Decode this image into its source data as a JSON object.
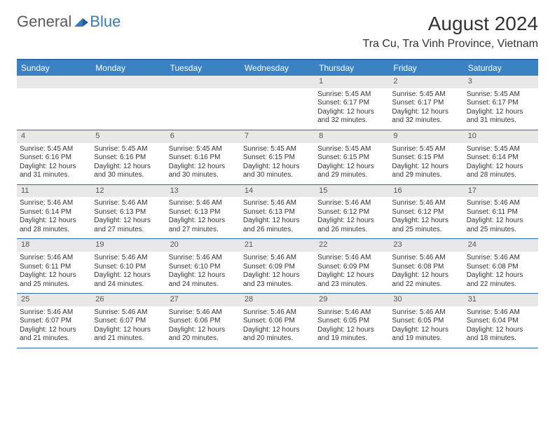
{
  "logo": {
    "general": "General",
    "blue": "Blue"
  },
  "title": "August 2024",
  "location": "Tra Cu, Tra Vinh Province, Vietnam",
  "colors": {
    "header_bg": "#3a82c4",
    "border": "#2f6aa8",
    "daynum_bg": "#e8e8e8",
    "text": "#333333",
    "logo_gray": "#5a5a5a",
    "logo_blue": "#3a7ab8"
  },
  "weekdays": [
    "Sunday",
    "Monday",
    "Tuesday",
    "Wednesday",
    "Thursday",
    "Friday",
    "Saturday"
  ],
  "first_day_index": 4,
  "days_in_month": 31,
  "days": {
    "1": {
      "sunrise": "5:45 AM",
      "sunset": "6:17 PM",
      "daylight": "12 hours and 32 minutes."
    },
    "2": {
      "sunrise": "5:45 AM",
      "sunset": "6:17 PM",
      "daylight": "12 hours and 32 minutes."
    },
    "3": {
      "sunrise": "5:45 AM",
      "sunset": "6:17 PM",
      "daylight": "12 hours and 31 minutes."
    },
    "4": {
      "sunrise": "5:45 AM",
      "sunset": "6:16 PM",
      "daylight": "12 hours and 31 minutes."
    },
    "5": {
      "sunrise": "5:45 AM",
      "sunset": "6:16 PM",
      "daylight": "12 hours and 30 minutes."
    },
    "6": {
      "sunrise": "5:45 AM",
      "sunset": "6:16 PM",
      "daylight": "12 hours and 30 minutes."
    },
    "7": {
      "sunrise": "5:45 AM",
      "sunset": "6:15 PM",
      "daylight": "12 hours and 30 minutes."
    },
    "8": {
      "sunrise": "5:45 AM",
      "sunset": "6:15 PM",
      "daylight": "12 hours and 29 minutes."
    },
    "9": {
      "sunrise": "5:45 AM",
      "sunset": "6:15 PM",
      "daylight": "12 hours and 29 minutes."
    },
    "10": {
      "sunrise": "5:45 AM",
      "sunset": "6:14 PM",
      "daylight": "12 hours and 28 minutes."
    },
    "11": {
      "sunrise": "5:46 AM",
      "sunset": "6:14 PM",
      "daylight": "12 hours and 28 minutes."
    },
    "12": {
      "sunrise": "5:46 AM",
      "sunset": "6:13 PM",
      "daylight": "12 hours and 27 minutes."
    },
    "13": {
      "sunrise": "5:46 AM",
      "sunset": "6:13 PM",
      "daylight": "12 hours and 27 minutes."
    },
    "14": {
      "sunrise": "5:46 AM",
      "sunset": "6:13 PM",
      "daylight": "12 hours and 26 minutes."
    },
    "15": {
      "sunrise": "5:46 AM",
      "sunset": "6:12 PM",
      "daylight": "12 hours and 26 minutes."
    },
    "16": {
      "sunrise": "5:46 AM",
      "sunset": "6:12 PM",
      "daylight": "12 hours and 25 minutes."
    },
    "17": {
      "sunrise": "5:46 AM",
      "sunset": "6:11 PM",
      "daylight": "12 hours and 25 minutes."
    },
    "18": {
      "sunrise": "5:46 AM",
      "sunset": "6:11 PM",
      "daylight": "12 hours and 25 minutes."
    },
    "19": {
      "sunrise": "5:46 AM",
      "sunset": "6:10 PM",
      "daylight": "12 hours and 24 minutes."
    },
    "20": {
      "sunrise": "5:46 AM",
      "sunset": "6:10 PM",
      "daylight": "12 hours and 24 minutes."
    },
    "21": {
      "sunrise": "5:46 AM",
      "sunset": "6:09 PM",
      "daylight": "12 hours and 23 minutes."
    },
    "22": {
      "sunrise": "5:46 AM",
      "sunset": "6:09 PM",
      "daylight": "12 hours and 23 minutes."
    },
    "23": {
      "sunrise": "5:46 AM",
      "sunset": "6:08 PM",
      "daylight": "12 hours and 22 minutes."
    },
    "24": {
      "sunrise": "5:46 AM",
      "sunset": "6:08 PM",
      "daylight": "12 hours and 22 minutes."
    },
    "25": {
      "sunrise": "5:46 AM",
      "sunset": "6:07 PM",
      "daylight": "12 hours and 21 minutes."
    },
    "26": {
      "sunrise": "5:46 AM",
      "sunset": "6:07 PM",
      "daylight": "12 hours and 21 minutes."
    },
    "27": {
      "sunrise": "5:46 AM",
      "sunset": "6:06 PM",
      "daylight": "12 hours and 20 minutes."
    },
    "28": {
      "sunrise": "5:46 AM",
      "sunset": "6:06 PM",
      "daylight": "12 hours and 20 minutes."
    },
    "29": {
      "sunrise": "5:46 AM",
      "sunset": "6:05 PM",
      "daylight": "12 hours and 19 minutes."
    },
    "30": {
      "sunrise": "5:46 AM",
      "sunset": "6:05 PM",
      "daylight": "12 hours and 19 minutes."
    },
    "31": {
      "sunrise": "5:46 AM",
      "sunset": "6:04 PM",
      "daylight": "12 hours and 18 minutes."
    }
  },
  "labels": {
    "sunrise": "Sunrise:",
    "sunset": "Sunset:",
    "daylight": "Daylight:"
  }
}
